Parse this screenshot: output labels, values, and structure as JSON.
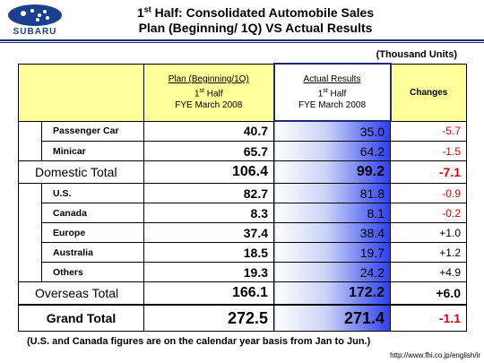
{
  "header": {
    "brand": "SUBARU",
    "title_line1_pre": "1",
    "title_line1_sup": "st",
    "title_line1_post": " Half:  Consolidated Automobile Sales",
    "title_line2": "Plan (Beginning/ 1Q) VS Actual Results"
  },
  "units": "(Thousand Units)",
  "columns": {
    "plan": {
      "line1": "Plan (Beginning/1Q)",
      "line2_pre": "1",
      "line2_sup": "st",
      "line2_post": " Half",
      "line3": "FYE March 2008"
    },
    "actual": {
      "line1": "Actual Results",
      "line2_pre": "1",
      "line2_sup": "st",
      "line2_post": " Half",
      "line3": "FYE March 2008"
    },
    "changes": "Changes"
  },
  "rows": {
    "passenger_car": {
      "label": "Passenger Car",
      "plan": "40.7",
      "actual": "35.0",
      "change": "-5.7"
    },
    "minicar": {
      "label": "Minicar",
      "plan": "65.7",
      "actual": "64.2",
      "change": "-1.5"
    },
    "domestic_total": {
      "label": "Domestic Total",
      "plan": "106.4",
      "actual": "99.2",
      "change": "-7.1"
    },
    "us": {
      "label": "U.S.",
      "plan": "82.7",
      "actual": "81.8",
      "change": "-0.9"
    },
    "canada": {
      "label": "Canada",
      "plan": "8.3",
      "actual": "8.1",
      "change": "-0.2"
    },
    "europe": {
      "label": "Europe",
      "plan": "37.4",
      "actual": "38.4",
      "change": "+1.0"
    },
    "australia": {
      "label": "Australia",
      "plan": "18.5",
      "actual": "19.7",
      "change": "+1.2"
    },
    "others": {
      "label": "Others",
      "plan": "19.3",
      "actual": "24.2",
      "change": "+4.9"
    },
    "overseas_total": {
      "label": "Overseas Total",
      "plan": "166.1",
      "actual": "172.2",
      "change": "+6.0"
    },
    "grand_total": {
      "label": "Grand Total",
      "plan": "272.5",
      "actual": "271.4",
      "change": "-1.1"
    }
  },
  "note": "(U.S. and Canada figures are on the calendar year basis from Jan to Jun.)",
  "url": "http://www.fhi.co.jp/english/ir",
  "colors": {
    "header_bg": "#ffff99",
    "actual_gradient_end": "#2c3ef0",
    "negative": "#e00000",
    "rule": "#1b2a7a"
  }
}
